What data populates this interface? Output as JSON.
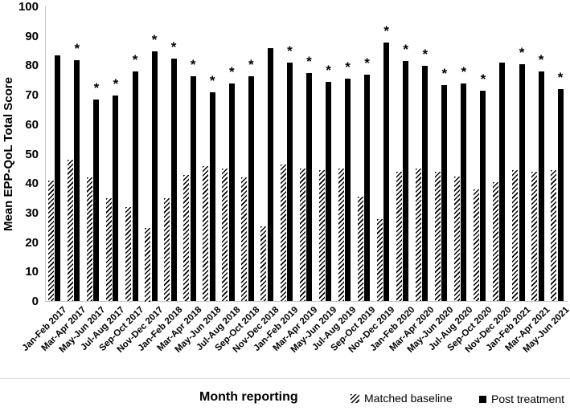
{
  "figure": {
    "background": "#ffffff",
    "bar_color": "#000000",
    "axis_line_color": "#c9c9c9",
    "significance_marker": "*"
  },
  "chart_data": {
    "type": "bar",
    "title": "",
    "xlabel": "Month reporting",
    "ylabel": "Mean EPP-QoL Total Score",
    "ylim": [
      0,
      100
    ],
    "yticks": [
      0,
      10,
      20,
      30,
      40,
      50,
      60,
      70,
      80,
      90,
      100
    ],
    "grid": "off",
    "legend_position": "bottom-right",
    "categories": [
      "Jan-Feb 2017",
      "Mar-Apr 2017",
      "May-Jun 2017",
      "Jul-Aug 2017",
      "Sep-Oct 2017",
      "Nov-Dec 2017",
      "Jan-Feb 2018",
      "Mar-Apr 2018",
      "May-Jun 2018",
      "Jul-Aug 2018",
      "Sep-Oct 2018",
      "Nov-Dec 2018",
      "Jan-Feb 2019",
      "Mar-Apr 2019",
      "May-Jun 2019",
      "Jul-Aug 2019",
      "Sep-Oct 2019",
      "Nov-Dec 2019",
      "Jan-Feb 2020",
      "Mar-Apr 2020",
      "May-Jun 2020",
      "Jul-Aug 2020",
      "Sep-Oct 2020",
      "Nov-Dec 2020",
      "Jan-Feb 2021",
      "Mar-Apr 2021",
      "May-Jun 2021"
    ],
    "series": [
      {
        "name": "Matched baseline",
        "style": "hatched",
        "values": [
          41,
          48,
          42,
          35,
          32,
          25,
          35,
          43,
          46,
          45,
          42,
          25.5,
          46.5,
          45,
          44.5,
          45,
          35.5,
          28,
          44,
          45,
          44,
          42.5,
          38,
          40.5,
          44.5,
          44,
          44.5
        ]
      },
      {
        "name": "Post treatment",
        "style": "solid",
        "values": [
          83.5,
          82,
          68.5,
          70,
          78,
          85,
          82.5,
          76.5,
          71,
          74,
          76.5,
          86,
          81,
          77.5,
          74.5,
          75.5,
          77,
          88,
          81.5,
          80,
          73.5,
          74,
          71.5,
          81,
          80.5,
          78,
          72
        ]
      }
    ],
    "significance": {
      "marker": "*",
      "applies_to": "Post treatment",
      "flags": [
        false,
        true,
        true,
        true,
        true,
        true,
        true,
        true,
        true,
        true,
        true,
        false,
        true,
        true,
        true,
        true,
        true,
        true,
        true,
        true,
        true,
        true,
        true,
        false,
        true,
        true,
        true
      ]
    }
  }
}
